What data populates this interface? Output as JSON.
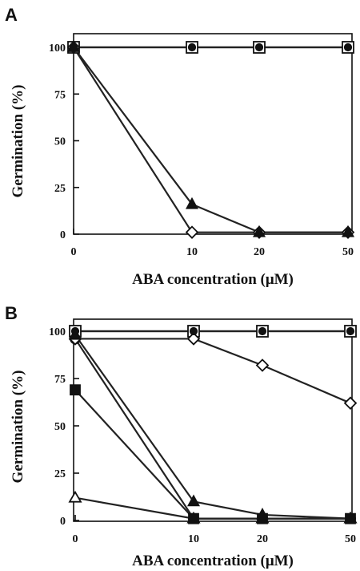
{
  "chart_data": [
    {
      "type": "line",
      "panel_label": "A",
      "xlabel": "ABA concentration (μM)",
      "ylabel": "Germination (%)",
      "categories": [
        "0",
        "10",
        "20",
        "50"
      ],
      "yticks": [
        "0",
        "25",
        "50",
        "75",
        "100"
      ],
      "ylim": [
        0,
        100
      ],
      "grid": false,
      "legend": "none",
      "series": [
        {
          "marker": "open-square",
          "values": [
            100,
            100,
            100,
            100
          ]
        },
        {
          "marker": "filled-circle",
          "values": [
            100,
            100,
            100,
            100
          ]
        },
        {
          "marker": "filled-triangle",
          "values": [
            100,
            16,
            1,
            1
          ]
        },
        {
          "marker": "open-diamond",
          "values": [
            100,
            1,
            1,
            1
          ]
        }
      ]
    },
    {
      "type": "line",
      "panel_label": "B",
      "xlabel": "ABA concentration (μM)",
      "ylabel": "Germination (%)",
      "categories": [
        "0",
        "10",
        "20",
        "50"
      ],
      "yticks": [
        "0",
        "25",
        "50",
        "75",
        "100"
      ],
      "ylim": [
        0,
        100
      ],
      "grid": false,
      "legend": "none",
      "series": [
        {
          "marker": "open-square",
          "values": [
            100,
            100,
            100,
            100
          ]
        },
        {
          "marker": "filled-circle",
          "values": [
            100,
            100,
            100,
            100
          ]
        },
        {
          "marker": "open-diamond",
          "values": [
            96,
            96,
            82,
            62
          ]
        },
        {
          "marker": "filled-triangle",
          "values": [
            98,
            10,
            3,
            1
          ]
        },
        {
          "marker": "open-circle",
          "values": [
            96,
            1,
            1,
            1
          ]
        },
        {
          "marker": "filled-square",
          "values": [
            69,
            1,
            1,
            1
          ]
        },
        {
          "marker": "open-triangle",
          "values": [
            12,
            1,
            1,
            1
          ]
        }
      ]
    }
  ]
}
